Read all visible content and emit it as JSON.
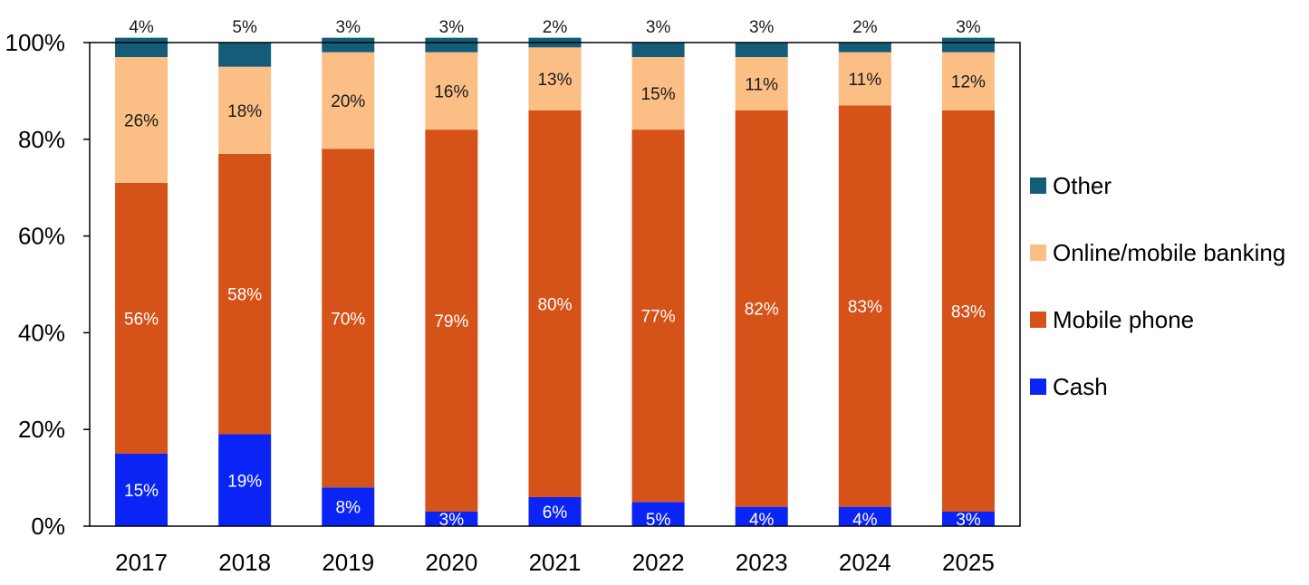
{
  "chart_data": {
    "type": "stacked-bar-100",
    "title": "",
    "xlabel": "",
    "ylabel": "",
    "ylim": [
      0,
      100
    ],
    "yticks": [
      "0%",
      "20%",
      "40%",
      "60%",
      "80%",
      "100%"
    ],
    "categories": [
      "2017",
      "2018",
      "2019",
      "2020",
      "2021",
      "2022",
      "2023",
      "2024",
      "2025"
    ],
    "series": [
      {
        "name": "Cash",
        "color": "#0a24f5",
        "label_color": "#ffffff",
        "values": [
          15,
          19,
          8,
          3,
          6,
          5,
          4,
          4,
          3
        ],
        "labels": [
          "15%",
          "19%",
          "8%",
          "3%",
          "6%",
          "5%",
          "4%",
          "4%",
          "3%"
        ]
      },
      {
        "name": "Mobile phone",
        "color": "#d55219",
        "label_color": "#ffffff",
        "values": [
          56,
          58,
          70,
          79,
          80,
          77,
          82,
          83,
          83
        ],
        "labels": [
          "56%",
          "58%",
          "70%",
          "79%",
          "80%",
          "77%",
          "82%",
          "83%",
          "83%"
        ]
      },
      {
        "name": "Online/mobile banking",
        "color": "#fbbf86",
        "label_color": "#1a1a1a",
        "values": [
          26,
          18,
          20,
          16,
          13,
          15,
          11,
          11,
          12
        ],
        "labels": [
          "26%",
          "18%",
          "20%",
          "16%",
          "13%",
          "15%",
          "11%",
          "11%",
          "12%"
        ]
      },
      {
        "name": "Other",
        "color": "#145d78",
        "label_color": "#1a1a1a",
        "values": [
          4,
          5,
          3,
          3,
          2,
          3,
          3,
          2,
          3
        ],
        "labels": [
          "4%",
          "5%",
          "3%",
          "3%",
          "2%",
          "3%",
          "3%",
          "2%",
          "3%"
        ]
      }
    ],
    "legend": {
      "position": "right",
      "order": [
        "Other",
        "Online/mobile banking",
        "Mobile phone",
        "Cash"
      ]
    },
    "grid": false
  }
}
